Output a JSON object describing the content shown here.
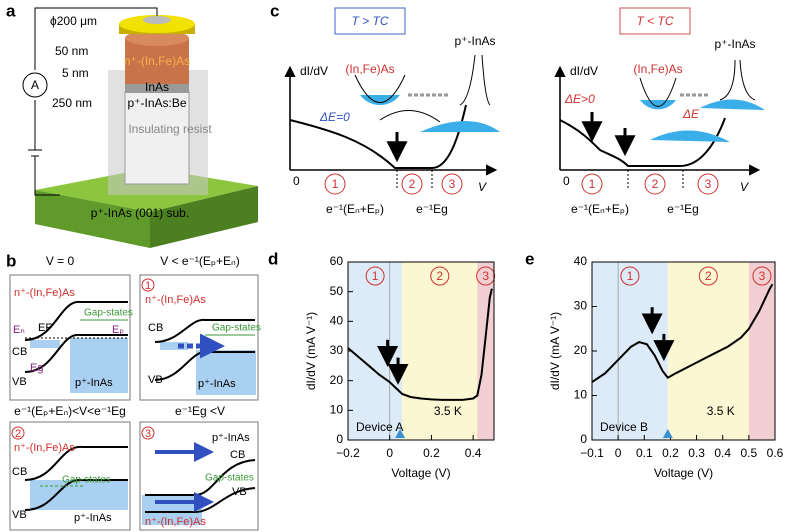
{
  "panel_a": {
    "label": "a",
    "diameter": "ϕ200 μm",
    "t1": "50 nm",
    "t2": "5 nm",
    "t3": "250 nm",
    "meter": "A",
    "layer1": "n⁺-(In,Fe)As",
    "layer2": "InAs",
    "layer3": "p⁺-InAs:Be",
    "resist": "Insulating resist",
    "substrate": "p⁺-InAs (001) sub."
  },
  "panel_b": {
    "label": "b",
    "box1": {
      "title": "V = 0",
      "top": "n⁺-(In,Fe)As",
      "gap": "Gap-states",
      "en": "Eₙ",
      "ef": "EF",
      "ep": "Eₚ",
      "cb": "CB",
      "eg": "Eg",
      "vb": "VB",
      "bottom": "p⁺-InAs"
    },
    "box2": {
      "title": "V < e⁻¹(Eₚ+Eₙ)",
      "num": "1",
      "top": "n⁺-(In,Fe)As",
      "cb": "CB",
      "gap": "Gap-states",
      "vb": "VB",
      "bottom": "p⁺-InAs"
    },
    "box3": {
      "title": "e⁻¹(Eₚ+Eₙ)<V<e⁻¹Eg",
      "num": "2",
      "top": "n⁺-(In,Fe)As",
      "cb": "CB",
      "gap": "Gap-states",
      "vb": "VB",
      "bottom": "p⁺-InAs"
    },
    "box4": {
      "title": "e⁻¹Eg <V",
      "num": "3",
      "top": "p⁺-InAs",
      "cb": "CB",
      "gap": "Gap-states",
      "vb": "VB",
      "bottom": "n⁺-(In,Fe)As"
    }
  },
  "panel_c": {
    "label": "c",
    "left": {
      "cond": "T > TC",
      "ylab": "dI/dV",
      "p": "p⁺-InAs",
      "n": "(In,Fe)As",
      "de": "ΔE=0",
      "zero": "0",
      "r1": "1",
      "r2": "2",
      "r3": "3",
      "v": "V",
      "e1": "e⁻¹(Eₙ+Eₚ)",
      "e2": "e⁻¹Eg"
    },
    "right": {
      "cond": "T < TC",
      "ylab": "dI/dV",
      "p": "p⁺-InAs",
      "n": "(In,Fe)As",
      "de": "ΔE>0",
      "de2": "ΔE",
      "zero": "0",
      "r1": "1",
      "r2": "2",
      "r3": "3",
      "v": "V",
      "e1": "e⁻¹(Eₙ+Eₚ)",
      "e2": "e⁻¹Eg"
    }
  },
  "chart_data": [
    {
      "type": "line",
      "label": "d",
      "x_label": "Voltage (V)",
      "y_label": "dI/dV (mA V⁻¹)",
      "device": "Device A",
      "temperature": "3.5 K",
      "color": "#000000",
      "xlim": [
        -0.2,
        0.5
      ],
      "xticks": [
        {
          "value": -0.2,
          "label": "−0.2"
        },
        0,
        0.2,
        0.4
      ],
      "ylim": [
        0,
        60
      ],
      "yticks": [
        0,
        10,
        20,
        30,
        40,
        50,
        60
      ],
      "x": [
        -0.2,
        -0.15,
        -0.1,
        -0.05,
        0,
        0.03,
        0.06,
        0.1,
        0.15,
        0.2,
        0.25,
        0.3,
        0.35,
        0.4,
        0.42,
        0.44,
        0.46,
        0.48,
        0.49
      ],
      "values": [
        31,
        28,
        25,
        22,
        19.5,
        17.5,
        15.5,
        14.5,
        14,
        13.7,
        13.5,
        13.5,
        13.5,
        14,
        15,
        22,
        35,
        48,
        51
      ],
      "regions": [
        {
          "label": "1",
          "from": -0.2,
          "to": 0.06,
          "color": "#dcebf7"
        },
        {
          "label": "2",
          "from": 0.06,
          "to": 0.42,
          "color": "#fbf7d2"
        },
        {
          "label": "3",
          "from": 0.42,
          "to": 0.5,
          "color": "#f2cfd2"
        }
      ],
      "arrows": [
        {
          "x": -0.01,
          "y": 25
        },
        {
          "x": 0.04,
          "y": 19
        }
      ],
      "triangles": [
        0.05
      ]
    },
    {
      "type": "line",
      "label": "e",
      "x_label": "Voltage (V)",
      "y_label": "dI/dV (mA V⁻¹)",
      "device": "Device B",
      "temperature": "3.5 K",
      "color": "#000000",
      "xlim": [
        -0.1,
        0.6
      ],
      "xticks": [
        {
          "value": -0.1,
          "label": "−0.1"
        },
        0,
        0.1,
        0.2,
        0.3,
        0.4,
        0.5,
        0.6
      ],
      "ylim": [
        0,
        40
      ],
      "yticks": [
        0,
        10,
        20,
        30,
        40
      ],
      "x": [
        -0.1,
        -0.05,
        0,
        0.05,
        0.08,
        0.11,
        0.14,
        0.17,
        0.19,
        0.22,
        0.27,
        0.32,
        0.37,
        0.42,
        0.47,
        0.5,
        0.54,
        0.58,
        0.59
      ],
      "values": [
        13,
        15,
        18,
        21,
        22,
        21.5,
        19,
        15.5,
        14,
        15,
        16.5,
        18,
        19.5,
        21,
        23,
        25,
        29,
        34,
        35
      ],
      "regions": [
        {
          "label": "1",
          "from": -0.1,
          "to": 0.19,
          "color": "#dcebf7"
        },
        {
          "label": "2",
          "from": 0.19,
          "to": 0.5,
          "color": "#fbf7d2"
        },
        {
          "label": "3",
          "from": 0.5,
          "to": 0.6,
          "color": "#f2cfd2"
        }
      ],
      "arrows": [
        {
          "x": 0.13,
          "y": 24
        },
        {
          "x": 0.175,
          "y": 18
        }
      ],
      "triangles": [
        0.19
      ]
    }
  ]
}
